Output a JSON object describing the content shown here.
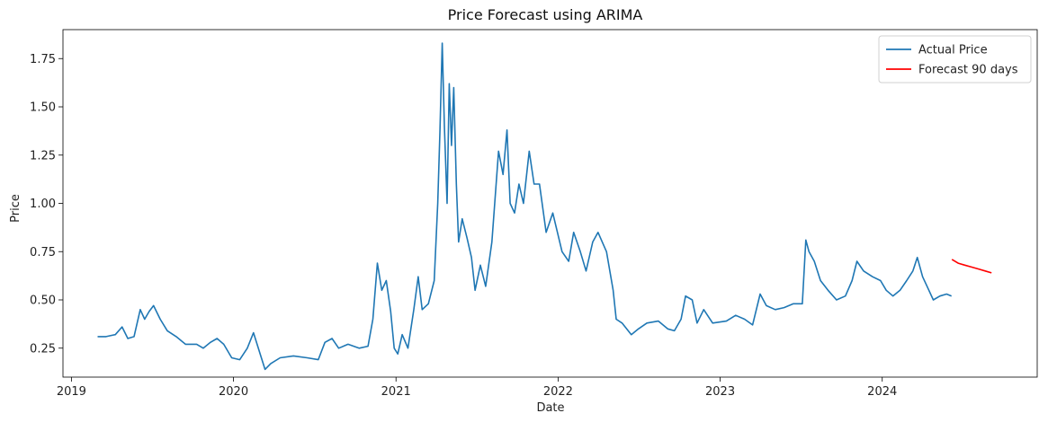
{
  "chart_data": {
    "type": "line",
    "title": "Price Forecast using ARIMA",
    "xlabel": "Date",
    "ylabel": "Price",
    "xlim": [
      "2018-12-13",
      "2024-12-15"
    ],
    "ylim": [
      0.1,
      1.9
    ],
    "x_ticks": [
      "2019",
      "2020",
      "2021",
      "2022",
      "2023",
      "2024"
    ],
    "y_ticks": [
      "0.25",
      "0.50",
      "0.75",
      "1.00",
      "1.25",
      "1.50",
      "1.75"
    ],
    "grid": false,
    "legend": "top-right",
    "series": [
      {
        "name": "Actual Price",
        "color": "#1f77b4",
        "points": [
          [
            "2019-03-01",
            0.31
          ],
          [
            "2019-03-20",
            0.31
          ],
          [
            "2019-04-10",
            0.32
          ],
          [
            "2019-04-25",
            0.36
          ],
          [
            "2019-05-08",
            0.3
          ],
          [
            "2019-05-22",
            0.31
          ],
          [
            "2019-06-05",
            0.45
          ],
          [
            "2019-06-15",
            0.4
          ],
          [
            "2019-06-25",
            0.44
          ],
          [
            "2019-07-05",
            0.47
          ],
          [
            "2019-07-20",
            0.4
          ],
          [
            "2019-08-05",
            0.34
          ],
          [
            "2019-08-25",
            0.31
          ],
          [
            "2019-09-15",
            0.27
          ],
          [
            "2019-10-10",
            0.27
          ],
          [
            "2019-10-25",
            0.25
          ],
          [
            "2019-11-10",
            0.28
          ],
          [
            "2019-11-25",
            0.3
          ],
          [
            "2019-12-10",
            0.27
          ],
          [
            "2019-12-28",
            0.2
          ],
          [
            "2020-01-15",
            0.19
          ],
          [
            "2020-02-01",
            0.25
          ],
          [
            "2020-02-15",
            0.33
          ],
          [
            "2020-03-01",
            0.22
          ],
          [
            "2020-03-12",
            0.14
          ],
          [
            "2020-03-25",
            0.17
          ],
          [
            "2020-04-15",
            0.2
          ],
          [
            "2020-05-15",
            0.21
          ],
          [
            "2020-06-15",
            0.2
          ],
          [
            "2020-07-10",
            0.19
          ],
          [
            "2020-07-25",
            0.28
          ],
          [
            "2020-08-10",
            0.3
          ],
          [
            "2020-08-25",
            0.25
          ],
          [
            "2020-09-15",
            0.27
          ],
          [
            "2020-10-10",
            0.25
          ],
          [
            "2020-10-30",
            0.26
          ],
          [
            "2020-11-10",
            0.4
          ],
          [
            "2020-11-20",
            0.69
          ],
          [
            "2020-11-30",
            0.55
          ],
          [
            "2020-12-10",
            0.6
          ],
          [
            "2020-12-20",
            0.44
          ],
          [
            "2020-12-28",
            0.25
          ],
          [
            "2021-01-05",
            0.22
          ],
          [
            "2021-01-15",
            0.32
          ],
          [
            "2021-01-28",
            0.25
          ],
          [
            "2021-02-10",
            0.45
          ],
          [
            "2021-02-20",
            0.62
          ],
          [
            "2021-03-01",
            0.45
          ],
          [
            "2021-03-15",
            0.48
          ],
          [
            "2021-03-28",
            0.6
          ],
          [
            "2021-04-05",
            1.0
          ],
          [
            "2021-04-10",
            1.38
          ],
          [
            "2021-04-15",
            1.83
          ],
          [
            "2021-04-20",
            1.4
          ],
          [
            "2021-04-26",
            1.0
          ],
          [
            "2021-05-01",
            1.62
          ],
          [
            "2021-05-06",
            1.3
          ],
          [
            "2021-05-11",
            1.6
          ],
          [
            "2021-05-17",
            1.1
          ],
          [
            "2021-05-22",
            0.8
          ],
          [
            "2021-05-30",
            0.92
          ],
          [
            "2021-06-10",
            0.82
          ],
          [
            "2021-06-20",
            0.72
          ],
          [
            "2021-06-28",
            0.55
          ],
          [
            "2021-07-10",
            0.68
          ],
          [
            "2021-07-22",
            0.57
          ],
          [
            "2021-08-05",
            0.8
          ],
          [
            "2021-08-20",
            1.27
          ],
          [
            "2021-08-30",
            1.15
          ],
          [
            "2021-09-08",
            1.38
          ],
          [
            "2021-09-15",
            1.0
          ],
          [
            "2021-09-25",
            0.95
          ],
          [
            "2021-10-05",
            1.1
          ],
          [
            "2021-10-15",
            1.0
          ],
          [
            "2021-10-28",
            1.27
          ],
          [
            "2021-11-08",
            1.1
          ],
          [
            "2021-11-20",
            1.1
          ],
          [
            "2021-12-05",
            0.85
          ],
          [
            "2021-12-20",
            0.95
          ],
          [
            "2022-01-10",
            0.75
          ],
          [
            "2022-01-25",
            0.7
          ],
          [
            "2022-02-05",
            0.85
          ],
          [
            "2022-02-20",
            0.75
          ],
          [
            "2022-03-05",
            0.65
          ],
          [
            "2022-03-20",
            0.8
          ],
          [
            "2022-04-01",
            0.85
          ],
          [
            "2022-04-20",
            0.75
          ],
          [
            "2022-05-05",
            0.55
          ],
          [
            "2022-05-12",
            0.4
          ],
          [
            "2022-05-25",
            0.38
          ],
          [
            "2022-06-15",
            0.32
          ],
          [
            "2022-07-01",
            0.35
          ],
          [
            "2022-07-20",
            0.38
          ],
          [
            "2022-08-15",
            0.39
          ],
          [
            "2022-09-05",
            0.35
          ],
          [
            "2022-09-20",
            0.34
          ],
          [
            "2022-10-05",
            0.4
          ],
          [
            "2022-10-15",
            0.52
          ],
          [
            "2022-10-30",
            0.5
          ],
          [
            "2022-11-10",
            0.38
          ],
          [
            "2022-11-25",
            0.45
          ],
          [
            "2022-12-15",
            0.38
          ],
          [
            "2023-01-15",
            0.39
          ],
          [
            "2023-02-05",
            0.42
          ],
          [
            "2023-02-25",
            0.4
          ],
          [
            "2023-03-15",
            0.37
          ],
          [
            "2023-04-01",
            0.53
          ],
          [
            "2023-04-15",
            0.47
          ],
          [
            "2023-05-05",
            0.45
          ],
          [
            "2023-05-25",
            0.46
          ],
          [
            "2023-06-15",
            0.48
          ],
          [
            "2023-07-05",
            0.48
          ],
          [
            "2023-07-13",
            0.81
          ],
          [
            "2023-07-20",
            0.75
          ],
          [
            "2023-08-01",
            0.7
          ],
          [
            "2023-08-15",
            0.6
          ],
          [
            "2023-09-01",
            0.55
          ],
          [
            "2023-09-20",
            0.5
          ],
          [
            "2023-10-10",
            0.52
          ],
          [
            "2023-10-25",
            0.6
          ],
          [
            "2023-11-05",
            0.7
          ],
          [
            "2023-11-20",
            0.65
          ],
          [
            "2023-12-10",
            0.62
          ],
          [
            "2023-12-28",
            0.6
          ],
          [
            "2024-01-10",
            0.55
          ],
          [
            "2024-01-25",
            0.52
          ],
          [
            "2024-02-10",
            0.55
          ],
          [
            "2024-02-25",
            0.6
          ],
          [
            "2024-03-10",
            0.65
          ],
          [
            "2024-03-20",
            0.72
          ],
          [
            "2024-04-01",
            0.62
          ],
          [
            "2024-04-15",
            0.55
          ],
          [
            "2024-04-25",
            0.5
          ],
          [
            "2024-05-10",
            0.52
          ],
          [
            "2024-05-25",
            0.53
          ],
          [
            "2024-06-05",
            0.52
          ]
        ]
      },
      {
        "name": "Forecast 90 days",
        "color": "#ff0000",
        "points": [
          [
            "2024-06-06",
            0.71
          ],
          [
            "2024-06-20",
            0.69
          ],
          [
            "2024-07-05",
            0.68
          ],
          [
            "2024-07-20",
            0.67
          ],
          [
            "2024-08-05",
            0.66
          ],
          [
            "2024-08-20",
            0.65
          ],
          [
            "2024-09-03",
            0.64
          ]
        ]
      }
    ]
  }
}
